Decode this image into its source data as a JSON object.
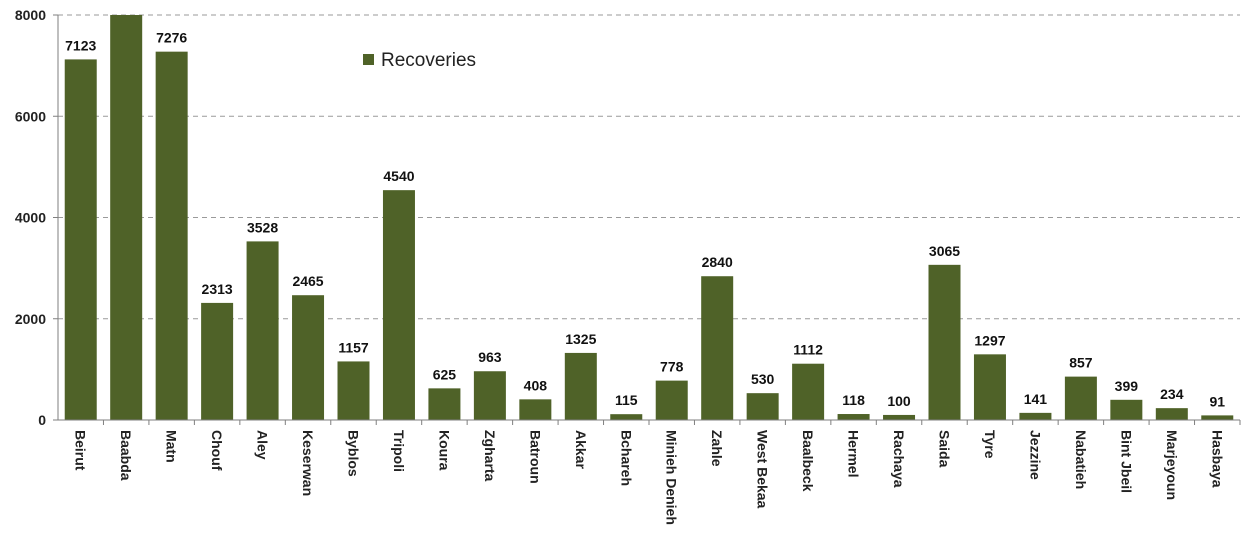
{
  "chart_data": {
    "type": "bar",
    "categories": [
      "Beirut",
      "Baabda",
      "Matn",
      "Chouf",
      "Aley",
      "Keserwan",
      "Byblos",
      "Tripoli",
      "Koura",
      "Zgharta",
      "Batroun",
      "Akkar",
      "Bchareh",
      "Minieh Denieh",
      "Zahle",
      "West Bekaa",
      "Baalbeck",
      "Hermel",
      "Rachaya",
      "Saida",
      "Tyre",
      "Jezzine",
      "Nabatieh",
      "Bint Jbeil",
      "Marjeyoun",
      "Hasbaya"
    ],
    "series": [
      {
        "name": "Recoveries",
        "values": [
          7123,
          8000,
          7276,
          2313,
          3528,
          2465,
          1157,
          4540,
          625,
          963,
          408,
          1325,
          115,
          778,
          2840,
          530,
          1112,
          118,
          100,
          3065,
          1297,
          141,
          857,
          399,
          234,
          91
        ],
        "data_labels": [
          "7123",
          null,
          "7276",
          "2313",
          "3528",
          "2465",
          "1157",
          "4540",
          "625",
          "963",
          "408",
          "1325",
          "115",
          "778",
          "2840",
          "530",
          "1112",
          "118",
          "100",
          "3065",
          "1297",
          "141",
          "857",
          "399",
          "234",
          "91"
        ]
      }
    ],
    "ylim": [
      0,
      8000
    ],
    "yticks": [
      0,
      2000,
      4000,
      6000,
      8000
    ],
    "grid": "horizontal dashed",
    "legend": "top-center",
    "colors": {
      "bar": "#4f6228",
      "grid": "#9a9a9a",
      "axis": "#7f7f7f"
    }
  }
}
